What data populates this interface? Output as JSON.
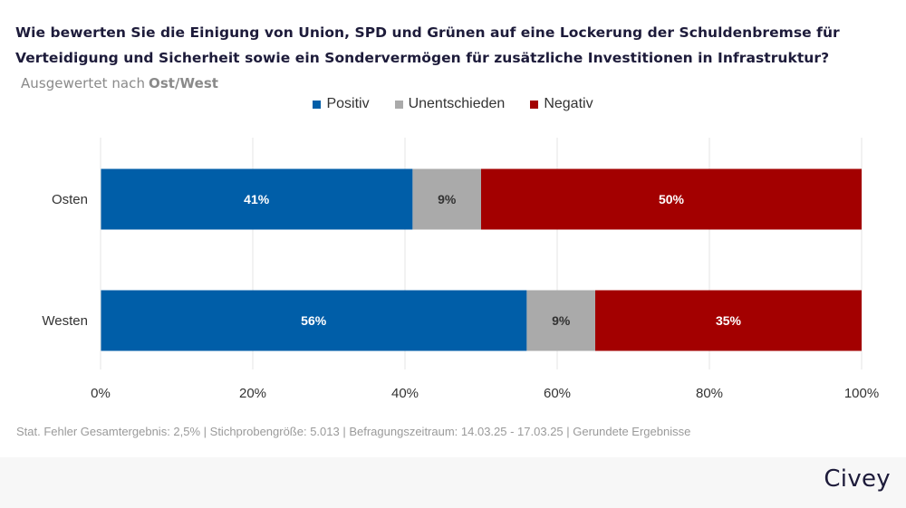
{
  "header": {
    "question": "Wie bewerten Sie die Einigung von Union, SPD und Grünen auf eine Lockerung der Schuldenbremse für Verteidigung und Sicherheit sowie ein Sondervermögen für zusätzliche Investitionen in Infrastruktur?",
    "evaluated_by_label": "Ausgewertet nach",
    "evaluated_by_value": "Ost/West"
  },
  "colors": {
    "positive": "#005ea8",
    "undecided": "#aaaaaa",
    "negative": "#a30000"
  },
  "chart_data": {
    "type": "bar",
    "orientation": "horizontal",
    "stacked": true,
    "categories": [
      "Osten",
      "Westen"
    ],
    "series": [
      {
        "name": "Positiv",
        "values": [
          41,
          56
        ],
        "labels": [
          "41%",
          "56%"
        ],
        "color": "#005ea8"
      },
      {
        "name": "Unentschieden",
        "values": [
          9,
          9
        ],
        "labels": [
          "9%",
          "9%"
        ],
        "color": "#aaaaaa"
      },
      {
        "name": "Negativ",
        "values": [
          50,
          35
        ],
        "labels": [
          "50%",
          "35%"
        ],
        "color": "#a30000"
      }
    ],
    "xlim": [
      0,
      100
    ],
    "xticks": [
      "0%",
      "20%",
      "40%",
      "60%",
      "80%",
      "100%"
    ],
    "grid": true,
    "legend_position": "top-center"
  },
  "footnote": "Stat. Fehler Gesamtergebnis: 2,5% | Stichprobengröße: 5.013 | Befragungszeitraum: 14.03.25 - 17.03.25 | Gerundete Ergebnisse",
  "brand": "Civey"
}
